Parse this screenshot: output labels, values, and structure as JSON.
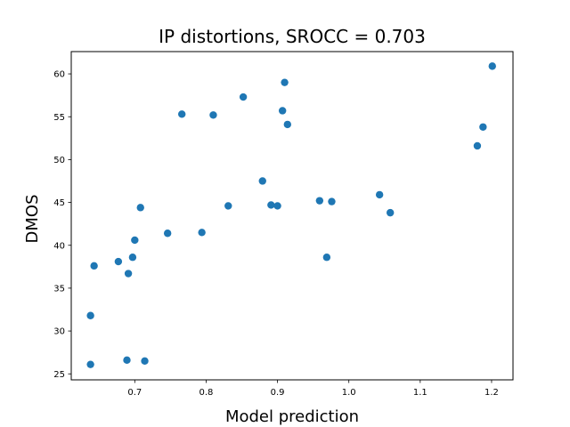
{
  "chart_data": {
    "type": "scatter",
    "title": "IP distortions, SROCC = 0.703",
    "xlabel": "Model prediction",
    "ylabel": "DMOS",
    "xlim": [
      0.611,
      1.23
    ],
    "ylim": [
      24.3,
      62.6
    ],
    "xticks": [
      0.7,
      0.8,
      0.9,
      1.0,
      1.1,
      1.2
    ],
    "xtick_labels": [
      "0.7",
      "0.8",
      "0.9",
      "1.0",
      "1.1",
      "1.2"
    ],
    "yticks": [
      25,
      30,
      35,
      40,
      45,
      50,
      55,
      60
    ],
    "ytick_labels": [
      "25",
      "30",
      "35",
      "40",
      "45",
      "50",
      "55",
      "60"
    ],
    "grid": false,
    "marker_color": "#1f77b4",
    "points": [
      {
        "x": 0.638,
        "y": 26.1
      },
      {
        "x": 0.638,
        "y": 31.8
      },
      {
        "x": 0.643,
        "y": 37.6
      },
      {
        "x": 0.677,
        "y": 38.1
      },
      {
        "x": 0.689,
        "y": 26.6
      },
      {
        "x": 0.691,
        "y": 36.7
      },
      {
        "x": 0.697,
        "y": 38.6
      },
      {
        "x": 0.7,
        "y": 40.6
      },
      {
        "x": 0.708,
        "y": 44.4
      },
      {
        "x": 0.714,
        "y": 26.5
      },
      {
        "x": 0.746,
        "y": 41.4
      },
      {
        "x": 0.766,
        "y": 55.3
      },
      {
        "x": 0.794,
        "y": 41.5
      },
      {
        "x": 0.81,
        "y": 55.2
      },
      {
        "x": 0.831,
        "y": 44.6
      },
      {
        "x": 0.852,
        "y": 57.3
      },
      {
        "x": 0.879,
        "y": 47.5
      },
      {
        "x": 0.891,
        "y": 44.7
      },
      {
        "x": 0.9,
        "y": 44.6
      },
      {
        "x": 0.907,
        "y": 55.7
      },
      {
        "x": 0.91,
        "y": 59.0
      },
      {
        "x": 0.914,
        "y": 54.1
      },
      {
        "x": 0.959,
        "y": 45.2
      },
      {
        "x": 0.969,
        "y": 38.6
      },
      {
        "x": 0.976,
        "y": 45.1
      },
      {
        "x": 1.043,
        "y": 45.9
      },
      {
        "x": 1.058,
        "y": 43.8
      },
      {
        "x": 1.18,
        "y": 51.6
      },
      {
        "x": 1.188,
        "y": 53.8
      },
      {
        "x": 1.201,
        "y": 60.9
      }
    ]
  }
}
